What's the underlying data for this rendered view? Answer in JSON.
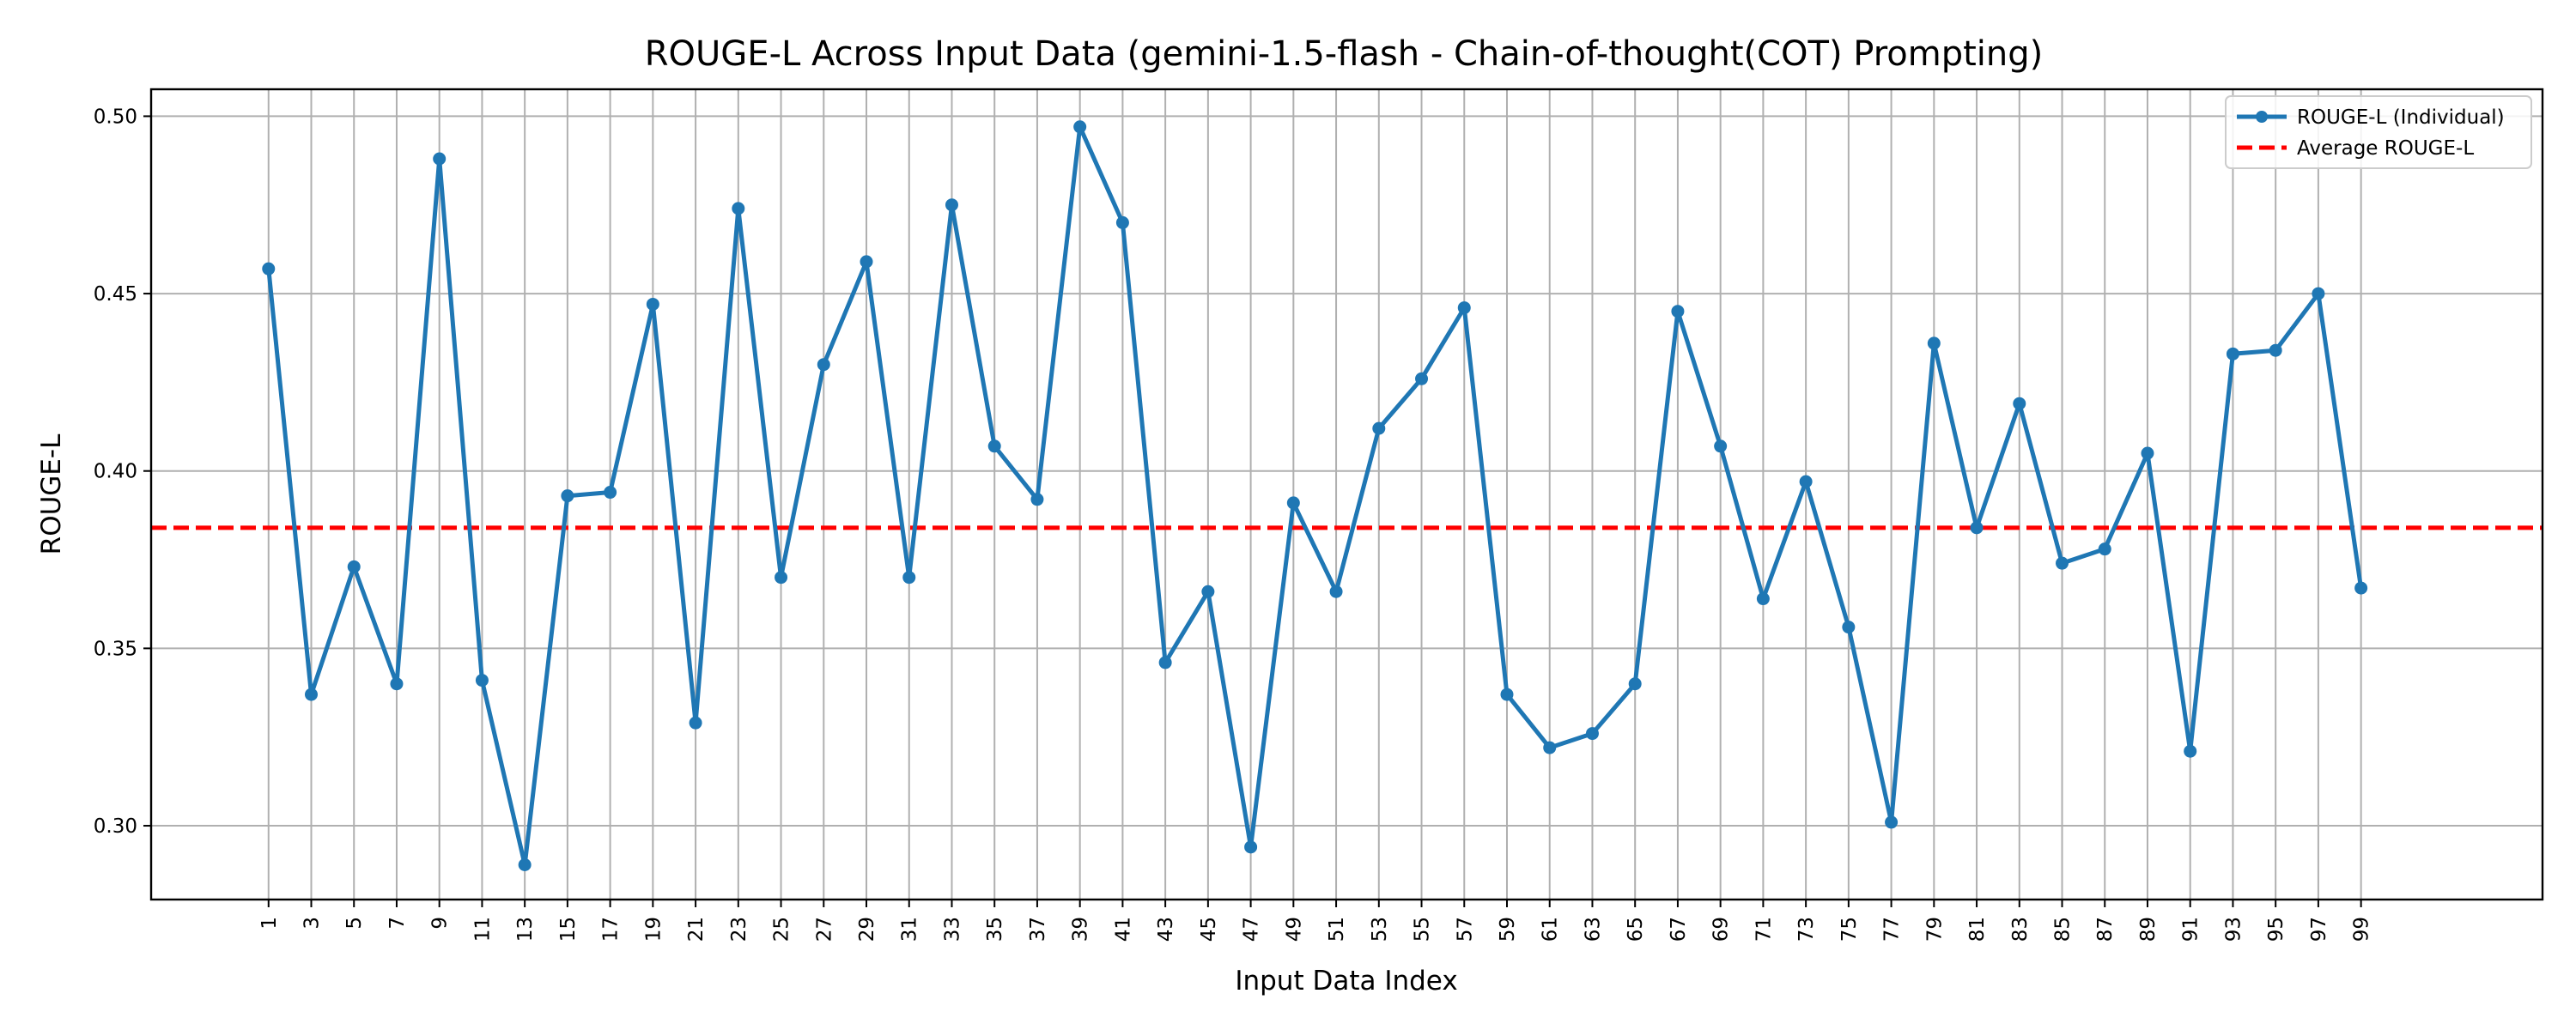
{
  "chart_data": {
    "type": "line",
    "title": "ROUGE-L Across Input Data (gemini-1.5-flash - Chain-of-thought(COT) Prompting)",
    "xlabel": "Input Data Index",
    "ylabel": "ROUGE-L",
    "x": [
      1,
      3,
      5,
      7,
      9,
      11,
      13,
      15,
      17,
      19,
      21,
      23,
      25,
      27,
      29,
      31,
      33,
      35,
      37,
      39,
      41,
      43,
      45,
      47,
      49,
      51,
      53,
      55,
      57,
      59,
      61,
      63,
      65,
      67,
      69,
      71,
      73,
      75,
      77,
      79,
      81,
      83,
      85,
      87,
      89,
      91,
      93,
      95,
      97,
      99
    ],
    "x_ticks": [
      "1",
      "3",
      "5",
      "7",
      "9",
      "11",
      "13",
      "15",
      "17",
      "19",
      "21",
      "23",
      "25",
      "27",
      "29",
      "31",
      "33",
      "35",
      "37",
      "39",
      "41",
      "43",
      "45",
      "47",
      "49",
      "51",
      "53",
      "55",
      "57",
      "59",
      "61",
      "63",
      "65",
      "67",
      "69",
      "71",
      "73",
      "75",
      "77",
      "79",
      "81",
      "83",
      "85",
      "87",
      "89",
      "91",
      "93",
      "95",
      "97",
      "99"
    ],
    "y_ticks": [
      "0.30",
      "0.35",
      "0.40",
      "0.45",
      "0.50"
    ],
    "xlim": [
      -4.5,
      107.5
    ],
    "ylim": [
      0.2792,
      0.5076
    ],
    "grid": true,
    "series": [
      {
        "name": "ROUGE-L (Individual)",
        "color": "#1f77b4",
        "style": "solid-with-markers",
        "values": [
          0.457,
          0.337,
          0.373,
          0.34,
          0.488,
          0.341,
          0.289,
          0.393,
          0.394,
          0.447,
          0.329,
          0.474,
          0.37,
          0.43,
          0.459,
          0.37,
          0.475,
          0.407,
          0.392,
          0.497,
          0.47,
          0.346,
          0.366,
          0.294,
          0.391,
          0.366,
          0.412,
          0.426,
          0.446,
          0.337,
          0.322,
          0.326,
          0.34,
          0.445,
          0.407,
          0.364,
          0.397,
          0.356,
          0.301,
          0.436,
          0.384,
          0.419,
          0.374,
          0.378,
          0.405,
          0.321,
          0.433,
          0.434,
          0.45,
          0.367
        ]
      },
      {
        "name": "Average ROUGE-L",
        "color": "#ff0000",
        "style": "dashed",
        "value": 0.384
      }
    ],
    "legend": "top-right"
  }
}
